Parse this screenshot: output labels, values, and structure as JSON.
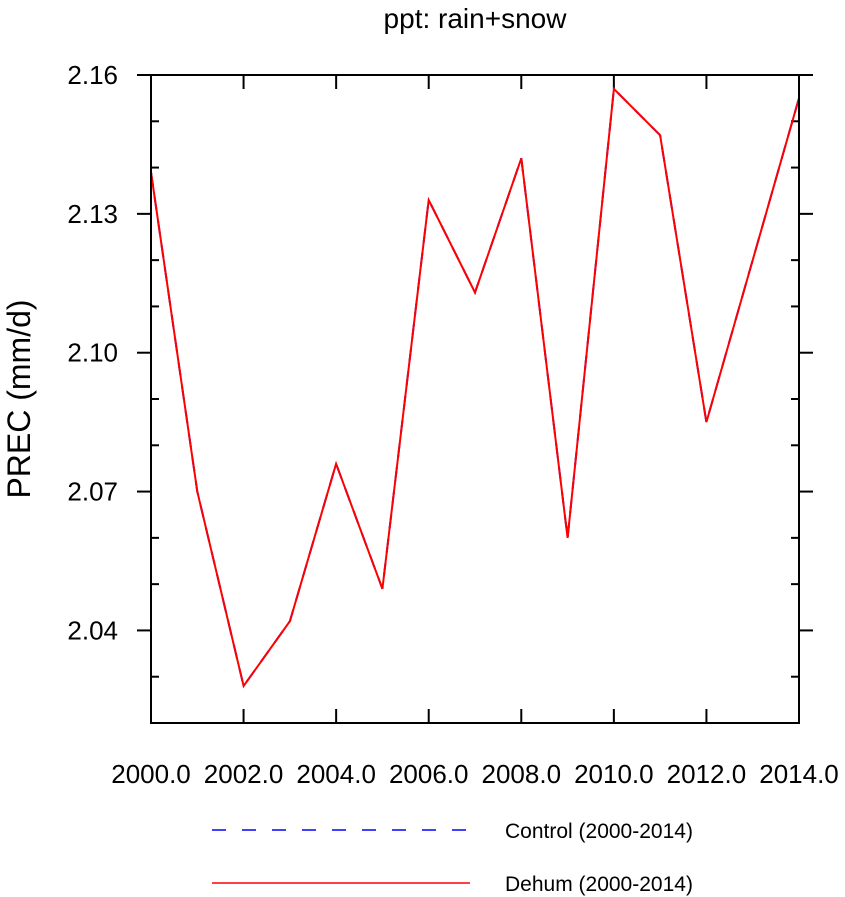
{
  "chart_data": {
    "type": "line",
    "title": "ppt: rain+snow",
    "xlabel": "",
    "ylabel": "PREC  (mm/d)",
    "xlim": [
      2000,
      2014
    ],
    "ylim": [
      2.02,
      2.16
    ],
    "xticks": [
      2000,
      2002,
      2004,
      2006,
      2008,
      2010,
      2012,
      2014
    ],
    "xtick_labels": [
      "2000.0",
      "2002.0",
      "2004.0",
      "2006.0",
      "2008.0",
      "2010.0",
      "2012.0",
      "2014.0"
    ],
    "yticks": [
      2.04,
      2.07,
      2.1,
      2.13,
      2.16
    ],
    "ytick_labels": [
      "2.04",
      "2.07",
      "2.10",
      "2.13",
      "2.16"
    ],
    "y_minor_step": 0.01,
    "grid": false,
    "legend_position": "bottom",
    "x": [
      2000,
      2001,
      2002,
      2003,
      2004,
      2005,
      2006,
      2007,
      2008,
      2009,
      2010,
      2011,
      2012,
      2013,
      2014
    ],
    "series": [
      {
        "name": "Control (2000-2014)",
        "color": "#0000ff",
        "style": "dashed",
        "values": [
          2.139,
          2.07,
          2.028,
          2.042,
          2.076,
          2.049,
          2.133,
          2.113,
          2.142,
          2.06,
          2.157,
          2.147,
          2.085,
          2.12,
          2.155
        ]
      },
      {
        "name": "Dehum (2000-2014)",
        "color": "#ff0000",
        "style": "solid",
        "values": [
          2.139,
          2.07,
          2.028,
          2.042,
          2.076,
          2.049,
          2.133,
          2.113,
          2.142,
          2.06,
          2.157,
          2.147,
          2.085,
          2.12,
          2.155
        ]
      }
    ]
  }
}
